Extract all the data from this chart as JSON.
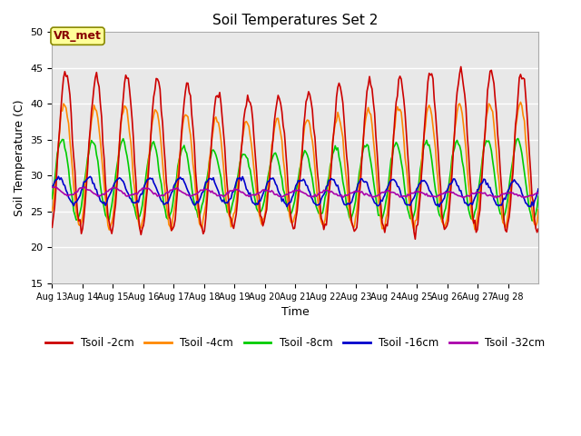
{
  "title": "Soil Temperatures Set 2",
  "xlabel": "Time",
  "ylabel": "Soil Temperature (C)",
  "ylim": [
    15,
    50
  ],
  "yticks": [
    15,
    20,
    25,
    30,
    35,
    40,
    45,
    50
  ],
  "plot_bg": "#e8e8e8",
  "figure_bg": "#ffffff",
  "grid_color": "#ffffff",
  "legend_labels": [
    "Tsoil -2cm",
    "Tsoil -4cm",
    "Tsoil -8cm",
    "Tsoil -16cm",
    "Tsoil -32cm"
  ],
  "line_colors": [
    "#cc0000",
    "#ff8800",
    "#00cc00",
    "#0000cc",
    "#aa00aa"
  ],
  "annotation_text": "VR_met",
  "annotation_bg": "#ffff99",
  "annotation_border": "#888800",
  "annotation_text_color": "#880000"
}
